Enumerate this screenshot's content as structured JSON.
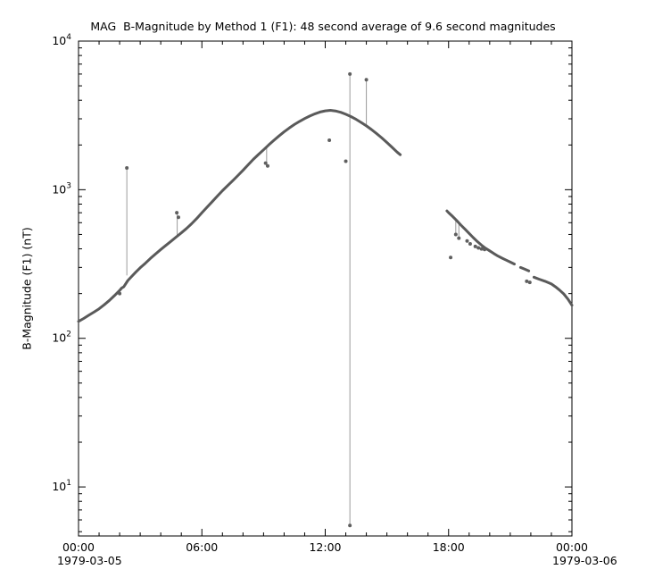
{
  "chart_data": {
    "type": "line",
    "title": "MAG  B-Magnitude by Method 1 (F1): 48 second average of 9.6 second magnitudes",
    "xlabel": "",
    "ylabel": "B-Magnitude (F1) (nT)",
    "grid": false,
    "legend": null,
    "line_color": "#5a5a5a",
    "marker_color": "#5f5f5f",
    "spike_color": "#9a9a9a",
    "x_axis": {
      "unit": "hours-of-day",
      "min": 0,
      "max": 24,
      "minor_tick_every": 1,
      "major_ticks": [
        0,
        6,
        12,
        18,
        24
      ],
      "tick_labels": [
        "00:00",
        "06:00",
        "12:00",
        "18:00",
        "00:00"
      ],
      "start_date_label": "1979-03-05",
      "end_date_label": "1979-03-06"
    },
    "y_axis": {
      "scale": "log",
      "min_exp": 0.67,
      "max_exp": 4,
      "major_ticks": [
        10,
        100,
        1000,
        10000
      ],
      "tick_labels": [
        {
          "base": "10",
          "exp": "1"
        },
        {
          "base": "10",
          "exp": "2"
        },
        {
          "base": "10",
          "exp": "3"
        },
        {
          "base": "10",
          "exp": "4"
        }
      ]
    },
    "series": [
      {
        "name": "segment-1",
        "points": [
          [
            0,
            130
          ],
          [
            0.25,
            136
          ],
          [
            0.5,
            143
          ],
          [
            0.75,
            150
          ],
          [
            1,
            158
          ],
          [
            1.25,
            168
          ],
          [
            1.5,
            180
          ],
          [
            1.75,
            194
          ],
          [
            2,
            210
          ],
          [
            2.1,
            218
          ],
          [
            2.2,
            222
          ],
          [
            2.4,
            245
          ],
          [
            2.6,
            262
          ],
          [
            2.8,
            280
          ],
          [
            3,
            298
          ],
          [
            3.25,
            320
          ],
          [
            3.5,
            345
          ],
          [
            3.75,
            370
          ],
          [
            4,
            396
          ],
          [
            4.25,
            422
          ],
          [
            4.5,
            450
          ],
          [
            4.75,
            480
          ],
          [
            5,
            512
          ],
          [
            5.25,
            548
          ],
          [
            5.5,
            590
          ],
          [
            5.75,
            640
          ],
          [
            6,
            700
          ],
          [
            6.25,
            762
          ],
          [
            6.5,
            830
          ],
          [
            6.75,
            905
          ],
          [
            7,
            985
          ],
          [
            7.25,
            1065
          ],
          [
            7.5,
            1150
          ],
          [
            7.75,
            1245
          ],
          [
            8,
            1350
          ],
          [
            8.25,
            1470
          ],
          [
            8.5,
            1600
          ],
          [
            8.75,
            1725
          ],
          [
            9,
            1855
          ],
          [
            9.25,
            2000
          ],
          [
            9.5,
            2150
          ],
          [
            9.75,
            2300
          ],
          [
            10,
            2450
          ],
          [
            10.25,
            2600
          ],
          [
            10.5,
            2745
          ],
          [
            10.75,
            2880
          ],
          [
            11,
            3010
          ],
          [
            11.25,
            3130
          ],
          [
            11.5,
            3240
          ],
          [
            11.75,
            3330
          ],
          [
            12,
            3395
          ],
          [
            12.25,
            3420
          ],
          [
            12.5,
            3390
          ],
          [
            12.75,
            3320
          ],
          [
            13,
            3220
          ],
          [
            13.25,
            3105
          ],
          [
            13.5,
            2975
          ],
          [
            13.75,
            2835
          ],
          [
            14,
            2690
          ],
          [
            14.25,
            2540
          ],
          [
            14.5,
            2385
          ],
          [
            14.75,
            2230
          ],
          [
            15,
            2080
          ],
          [
            15.25,
            1930
          ],
          [
            15.5,
            1790
          ],
          [
            15.65,
            1720
          ]
        ]
      },
      {
        "name": "segment-2",
        "points": [
          [
            17.92,
            720
          ],
          [
            18,
            700
          ],
          [
            18.2,
            660
          ],
          [
            18.4,
            618
          ],
          [
            18.6,
            578
          ],
          [
            18.8,
            542
          ],
          [
            19,
            508
          ],
          [
            19.2,
            476
          ],
          [
            19.4,
            448
          ],
          [
            19.6,
            424
          ],
          [
            19.8,
            404
          ],
          [
            20,
            388
          ],
          [
            20.2,
            372
          ],
          [
            20.4,
            358
          ],
          [
            20.6,
            346
          ],
          [
            20.8,
            336
          ],
          [
            21,
            326
          ],
          [
            21.2,
            316
          ]
        ]
      },
      {
        "name": "segment-3",
        "points": [
          [
            21.5,
            300
          ],
          [
            21.7,
            292
          ],
          [
            21.9,
            284
          ]
        ]
      },
      {
        "name": "segment-4",
        "points": [
          [
            22.15,
            258
          ],
          [
            22.4,
            250
          ],
          [
            22.7,
            242
          ],
          [
            23,
            232
          ],
          [
            23.2,
            222
          ],
          [
            23.4,
            211
          ],
          [
            23.6,
            199
          ],
          [
            23.8,
            184
          ],
          [
            24,
            167
          ]
        ]
      }
    ],
    "spikes": [
      {
        "x": 2.35,
        "y1": 265,
        "y2": 1400
      },
      {
        "x": 4.8,
        "y1": 480,
        "y2": 700
      },
      {
        "x": 9.15,
        "y1": 1960,
        "y2": 1450
      },
      {
        "x": 13.2,
        "y1": 5.5,
        "y2": 6000
      },
      {
        "x": 14.0,
        "y1": 2690,
        "y2": 5500
      },
      {
        "x": 18.35,
        "y1": 625,
        "y2": 500
      },
      {
        "x": 18.5,
        "y1": 600,
        "y2": 472
      }
    ],
    "outliers": [
      [
        2.0,
        200
      ],
      [
        2.35,
        1400
      ],
      [
        4.78,
        700
      ],
      [
        4.86,
        652
      ],
      [
        9.1,
        1510
      ],
      [
        9.2,
        1445
      ],
      [
        12.2,
        2150
      ],
      [
        13.0,
        1555
      ],
      [
        13.2,
        6000
      ],
      [
        13.2,
        5.5
      ],
      [
        14.0,
        5500
      ],
      [
        18.1,
        350
      ],
      [
        18.35,
        500
      ],
      [
        18.5,
        472
      ],
      [
        18.9,
        452
      ],
      [
        19.05,
        432
      ],
      [
        19.3,
        415
      ],
      [
        19.45,
        406
      ],
      [
        19.6,
        400
      ],
      [
        19.75,
        396
      ],
      [
        21.8,
        242
      ],
      [
        21.95,
        238
      ]
    ]
  }
}
